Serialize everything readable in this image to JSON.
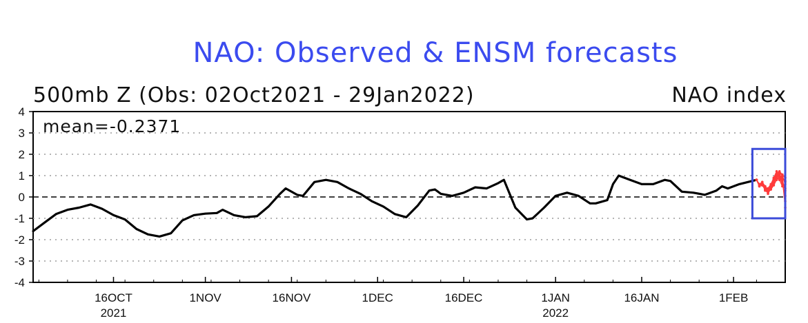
{
  "chart_data": {
    "type": "line",
    "title": "NAO: Observed & ENSM forecasts",
    "subtitle_left": "500mb Z (Obs: 02Oct2021 - 29Jan2022)",
    "subtitle_right": "NAO index",
    "annotation": "mean=-0.2371",
    "mean_value": -0.2371,
    "ylim": [
      -4,
      4
    ],
    "yticks": [
      4,
      3,
      2,
      1,
      0,
      -1,
      -2,
      -3,
      -4
    ],
    "grid": true,
    "xticks": [
      {
        "label": "16OCT",
        "sublabel": "2021",
        "day": 14
      },
      {
        "label": "1NOV",
        "sublabel": "",
        "day": 30
      },
      {
        "label": "16NOV",
        "sublabel": "",
        "day": 45
      },
      {
        "label": "1DEC",
        "sublabel": "",
        "day": 60
      },
      {
        "label": "16DEC",
        "sublabel": "",
        "day": 75
      },
      {
        "label": "1JAN",
        "sublabel": "2022",
        "day": 91
      },
      {
        "label": "16JAN",
        "sublabel": "",
        "day": 106
      },
      {
        "label": "1FEB",
        "sublabel": "",
        "day": 122
      }
    ],
    "x_day_range": [
      0,
      131
    ],
    "observed": {
      "color": "#000000",
      "points": [
        [
          0,
          -1.6
        ],
        [
          2,
          -1.2
        ],
        [
          4,
          -0.8
        ],
        [
          6,
          -0.6
        ],
        [
          8,
          -0.5
        ],
        [
          10,
          -0.35
        ],
        [
          12,
          -0.55
        ],
        [
          14,
          -0.85
        ],
        [
          16,
          -1.05
        ],
        [
          18,
          -1.5
        ],
        [
          20,
          -1.75
        ],
        [
          22,
          -1.85
        ],
        [
          24,
          -1.7
        ],
        [
          26,
          -1.1
        ],
        [
          28,
          -0.85
        ],
        [
          30,
          -0.78
        ],
        [
          32,
          -0.75
        ],
        [
          33,
          -0.6
        ],
        [
          35,
          -0.85
        ],
        [
          37,
          -0.95
        ],
        [
          39,
          -0.9
        ],
        [
          41,
          -0.45
        ],
        [
          43,
          0.15
        ],
        [
          44,
          0.4
        ],
        [
          46,
          0.1
        ],
        [
          47,
          0.05
        ],
        [
          49,
          0.7
        ],
        [
          51,
          0.8
        ],
        [
          53,
          0.7
        ],
        [
          55,
          0.4
        ],
        [
          57,
          0.15
        ],
        [
          59,
          -0.2
        ],
        [
          61,
          -0.45
        ],
        [
          63,
          -0.8
        ],
        [
          65,
          -0.95
        ],
        [
          67,
          -0.4
        ],
        [
          69,
          0.3
        ],
        [
          70,
          0.35
        ],
        [
          71,
          0.15
        ],
        [
          73,
          0.05
        ],
        [
          75,
          0.2
        ],
        [
          77,
          0.45
        ],
        [
          79,
          0.4
        ],
        [
          81,
          0.65
        ],
        [
          82,
          0.8
        ],
        [
          84,
          -0.5
        ],
        [
          86,
          -1.05
        ],
        [
          87,
          -1.0
        ],
        [
          89,
          -0.5
        ],
        [
          91,
          0.05
        ],
        [
          93,
          0.2
        ],
        [
          95,
          0.05
        ],
        [
          97,
          -0.3
        ],
        [
          98,
          -0.3
        ],
        [
          100,
          -0.15
        ],
        [
          101,
          0.6
        ],
        [
          102,
          1.0
        ],
        [
          104,
          0.8
        ],
        [
          106,
          0.6
        ],
        [
          108,
          0.6
        ],
        [
          110,
          0.8
        ],
        [
          111,
          0.75
        ],
        [
          113,
          0.25
        ],
        [
          115,
          0.2
        ],
        [
          117,
          0.1
        ],
        [
          119,
          0.3
        ],
        [
          120,
          0.5
        ],
        [
          121,
          0.4
        ],
        [
          123,
          0.6
        ],
        [
          126,
          0.8
        ]
      ]
    },
    "forecast": {
      "color": "#ff3b3b",
      "start_day": 126,
      "members": [
        [
          0.8,
          0.5,
          0.6,
          0.45,
          0.15,
          0.4,
          0.6,
          1.0,
          1.05,
          0.85,
          0.75
        ],
        [
          0.8,
          0.55,
          0.55,
          0.35,
          0.25,
          0.45,
          0.7,
          0.95,
          1.15,
          1.0,
          0.6
        ],
        [
          0.8,
          0.6,
          0.65,
          0.4,
          0.3,
          0.55,
          0.85,
          1.1,
          0.9,
          0.8,
          0.3
        ],
        [
          0.8,
          0.5,
          0.7,
          0.5,
          0.35,
          0.5,
          0.75,
          1.05,
          1.2,
          1.05,
          0.9
        ],
        [
          0.8,
          0.55,
          0.6,
          0.3,
          0.2,
          0.35,
          0.55,
          0.8,
          0.95,
          0.6,
          0.05
        ],
        [
          0.8,
          0.6,
          0.55,
          0.45,
          0.4,
          0.6,
          0.9,
          1.2,
          1.1,
          0.7,
          -0.2
        ],
        [
          0.8,
          0.5,
          0.65,
          0.35,
          0.3,
          0.45,
          0.65,
          0.9,
          0.8,
          0.5,
          0.4
        ],
        [
          0.8,
          0.55,
          0.6,
          0.5,
          0.25,
          0.5,
          0.8,
          1.05,
          1.0,
          0.95,
          0.7
        ],
        [
          0.8,
          0.6,
          0.7,
          0.4,
          0.35,
          0.55,
          0.7,
          0.85,
          1.05,
          0.9,
          -0.5
        ]
      ]
    },
    "highlight_box": {
      "color": "#3b4bd9",
      "x_day_range": [
        126,
        131
      ],
      "y_range": [
        -1.0,
        2.25
      ]
    }
  }
}
